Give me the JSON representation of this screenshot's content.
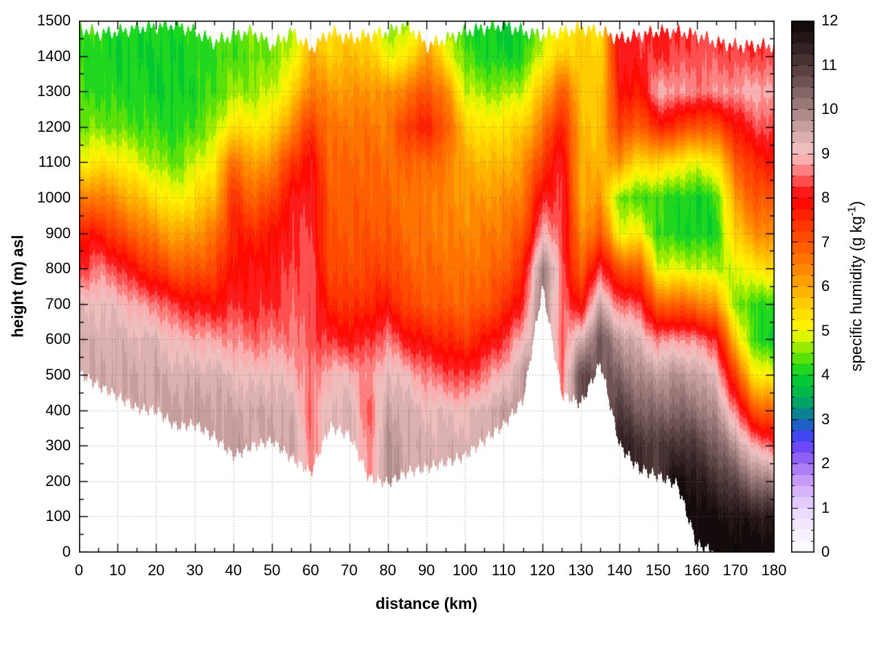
{
  "figure": {
    "background": "#ffffff",
    "frame_color": "#000000",
    "grid_color": "#787878"
  },
  "chart_data": {
    "type": "heatmap",
    "subtype": "filled_contour_cross_section",
    "title": "",
    "xlabel": "distance (km)",
    "ylabel": "height (m) asl",
    "colorbar_label_prefix": "specific humidity (g kg",
    "colorbar_label_sup": "-1",
    "colorbar_label_suffix": ")",
    "x_range_km": [
      0,
      180
    ],
    "y_range_m": [
      0,
      1500
    ],
    "colorbar_range": [
      0,
      12
    ],
    "x_ticks": [
      0,
      10,
      20,
      30,
      40,
      50,
      60,
      70,
      80,
      90,
      100,
      110,
      120,
      130,
      140,
      150,
      160,
      170,
      180
    ],
    "x_minor_step_km": 5,
    "y_ticks": [
      0,
      100,
      200,
      300,
      400,
      500,
      600,
      700,
      800,
      900,
      1000,
      1100,
      1200,
      1300,
      1400,
      1500
    ],
    "y_minor_step_m": 50,
    "colorbar_ticks": [
      0,
      1,
      2,
      3,
      4,
      5,
      6,
      7,
      8,
      9,
      10,
      11,
      12
    ],
    "colorbar_minor_step": 0.25,
    "band_interval": 0.25,
    "grid_x_step_km": 10,
    "grid_y_step_m": 100,
    "legend_position": "right-colorbar",
    "palette": [
      [
        0.0,
        255,
        255,
        255
      ],
      [
        0.5,
        246,
        238,
        255
      ],
      [
        1.0,
        232,
        213,
        252
      ],
      [
        1.5,
        210,
        170,
        248
      ],
      [
        2.0,
        160,
        110,
        245
      ],
      [
        2.5,
        90,
        60,
        250
      ],
      [
        2.75,
        40,
        80,
        230
      ],
      [
        3.0,
        20,
        110,
        170
      ],
      [
        3.25,
        0,
        150,
        120
      ],
      [
        3.5,
        0,
        175,
        85
      ],
      [
        4.0,
        0,
        210,
        40
      ],
      [
        4.5,
        120,
        230,
        0
      ],
      [
        5.0,
        255,
        250,
        0
      ],
      [
        5.5,
        255,
        215,
        0
      ],
      [
        6.0,
        255,
        170,
        0
      ],
      [
        6.5,
        255,
        125,
        0
      ],
      [
        7.0,
        255,
        85,
        0
      ],
      [
        7.5,
        255,
        45,
        0
      ],
      [
        8.0,
        255,
        0,
        0
      ],
      [
        8.5,
        255,
        105,
        105
      ],
      [
        9.0,
        247,
        198,
        198
      ],
      [
        9.5,
        210,
        168,
        168
      ],
      [
        10.0,
        165,
        130,
        130
      ],
      [
        10.5,
        120,
        92,
        92
      ],
      [
        11.0,
        80,
        58,
        58
      ],
      [
        11.5,
        45,
        28,
        28
      ],
      [
        12.0,
        12,
        6,
        6
      ]
    ],
    "x_start_km": 0,
    "x_step_km": 5,
    "z_start_m": 0,
    "z_step_m": 100,
    "terrain_m": [
      505,
      470,
      440,
      405,
      400,
      355,
      360,
      325,
      272,
      300,
      315,
      265,
      225,
      355,
      330,
      210,
      195,
      227,
      237,
      253,
      272,
      317,
      360,
      430,
      750,
      445,
      420,
      535,
      300,
      235,
      215,
      190,
      20,
      0,
      0,
      0,
      0
    ],
    "data_top_m": [
      1480,
      1465,
      1470,
      1480,
      1485,
      1490,
      1470,
      1440,
      1460,
      1470,
      1430,
      1470,
      1420,
      1470,
      1450,
      1460,
      1470,
      1490,
      1430,
      1450,
      1470,
      1480,
      1490,
      1470,
      1460,
      1470,
      1480,
      1470,
      1450,
      1460,
      1470,
      1470,
      1460,
      1440,
      1430,
      1430,
      1430
    ],
    "humidity_g_per_kg": [
      [
        null,
        null,
        null,
        null,
        null,
        null,
        9.4,
        9.2,
        8.2,
        7.6,
        6.4,
        5.1,
        4.4,
        4.2,
        4.2,
        4.3
      ],
      [
        null,
        null,
        null,
        null,
        null,
        9.5,
        9.4,
        9.2,
        8.6,
        7.8,
        6.6,
        5.3,
        4.5,
        4.2,
        4.1,
        4.2
      ],
      [
        null,
        null,
        null,
        null,
        null,
        9.5,
        9.4,
        9.1,
        8.3,
        7.2,
        6.2,
        5.2,
        4.4,
        4.1,
        4.0,
        4.1
      ],
      [
        null,
        null,
        null,
        null,
        null,
        9.5,
        9.3,
        8.8,
        7.8,
        6.8,
        5.8,
        4.9,
        4.3,
        4.1,
        4.0,
        4.1
      ],
      [
        null,
        null,
        null,
        null,
        null,
        9.5,
        9.3,
        8.6,
        7.4,
        6.4,
        5.4,
        4.6,
        4.2,
        4.0,
        4.0,
        4.1
      ],
      [
        null,
        null,
        null,
        null,
        9.6,
        9.4,
        9.0,
        8.2,
        7.0,
        6.0,
        5.0,
        4.4,
        4.1,
        4.0,
        4.0,
        4.1
      ],
      [
        null,
        null,
        null,
        null,
        9.6,
        9.4,
        8.9,
        8.0,
        7.0,
        6.2,
        5.4,
        4.8,
        4.3,
        4.1,
        4.1,
        4.2
      ],
      [
        null,
        null,
        null,
        null,
        9.6,
        9.4,
        8.8,
        7.9,
        7.2,
        6.6,
        5.8,
        5.2,
        4.6,
        4.3,
        4.2,
        4.3
      ],
      [
        null,
        null,
        null,
        9.7,
        9.5,
        9.2,
        8.7,
        8.2,
        7.9,
        7.7,
        7.5,
        6.8,
        5.4,
        4.6,
        4.3,
        4.4
      ],
      [
        null,
        null,
        null,
        null,
        9.5,
        9.1,
        8.5,
        8.1,
        8.0,
        7.6,
        6.8,
        6.0,
        5.2,
        4.6,
        4.4,
        4.5
      ],
      [
        null,
        null,
        null,
        null,
        9.5,
        9.2,
        8.6,
        8.2,
        8.0,
        7.8,
        7.2,
        6.4,
        5.4,
        4.8,
        4.5,
        4.6
      ],
      [
        null,
        null,
        null,
        9.6,
        9.4,
        9.0,
        8.6,
        8.4,
        8.3,
        8.2,
        8.0,
        7.4,
        6.4,
        5.4,
        4.8,
        4.6
      ],
      [
        null,
        null,
        null,
        8.6,
        8.5,
        8.5,
        8.4,
        8.4,
        8.4,
        8.3,
        8.2,
        8.0,
        7.4,
        6.6,
        6.0,
        5.6
      ],
      [
        null,
        null,
        null,
        null,
        9.3,
        9.0,
        8.2,
        7.6,
        7.2,
        7.0,
        6.9,
        6.8,
        6.6,
        6.2,
        5.6,
        5.2
      ],
      [
        null,
        null,
        null,
        null,
        9.4,
        9.0,
        8.0,
        7.4,
        7.1,
        7.0,
        6.9,
        6.8,
        6.6,
        6.2,
        5.8,
        5.4
      ],
      [
        null,
        null,
        null,
        8.6,
        8.4,
        8.6,
        8.2,
        7.6,
        7.2,
        7.0,
        6.9,
        6.8,
        6.6,
        6.3,
        5.7,
        5.3
      ],
      [
        null,
        null,
        9.9,
        9.8,
        9.6,
        9.3,
        8.6,
        7.8,
        7.3,
        7.0,
        6.8,
        6.7,
        6.5,
        6.2,
        5.0,
        4.4
      ],
      [
        null,
        null,
        null,
        9.5,
        9.4,
        9.0,
        8.0,
        7.2,
        6.9,
        6.7,
        6.6,
        6.8,
        7.4,
        6.6,
        5.2,
        4.6
      ],
      [
        null,
        null,
        null,
        9.4,
        9.2,
        8.6,
        7.8,
        7.0,
        6.8,
        6.6,
        6.6,
        6.8,
        7.7,
        7.1,
        6.3,
        5.4
      ],
      [
        null,
        null,
        null,
        9.4,
        9.2,
        8.4,
        7.6,
        6.9,
        6.7,
        6.5,
        6.4,
        6.6,
        7.0,
        6.4,
        5.2,
        4.6
      ],
      [
        null,
        null,
        null,
        9.4,
        9.1,
        8.2,
        7.4,
        6.8,
        6.6,
        6.4,
        6.2,
        6.0,
        5.6,
        4.8,
        4.3,
        4.1
      ],
      [
        null,
        null,
        null,
        null,
        9.4,
        8.6,
        7.8,
        7.0,
        6.7,
        6.5,
        6.2,
        5.8,
        5.2,
        4.6,
        4.1,
        4.0
      ],
      [
        null,
        null,
        null,
        null,
        9.6,
        9.0,
        8.2,
        7.4,
        6.9,
        6.6,
        6.3,
        5.8,
        5.4,
        4.6,
        4.0,
        3.9
      ],
      [
        null,
        null,
        null,
        null,
        null,
        9.7,
        9.0,
        8.2,
        7.6,
        7.0,
        6.6,
        6.2,
        5.6,
        4.8,
        4.1,
        3.9
      ],
      [
        null,
        null,
        null,
        null,
        null,
        null,
        null,
        null,
        10.2,
        8.9,
        8.1,
        7.4,
        6.6,
        5.8,
        5.0,
        4.6
      ],
      [
        null,
        null,
        null,
        null,
        null,
        8.5,
        8.5,
        8.5,
        8.5,
        8.4,
        8.3,
        8.2,
        7.8,
        7.0,
        5.6,
        5.0
      ],
      [
        null,
        null,
        null,
        null,
        null,
        10.8,
        9.4,
        7.8,
        6.8,
        6.3,
        6.0,
        5.9,
        5.8,
        5.7,
        5.6,
        5.4
      ],
      [
        null,
        null,
        null,
        null,
        null,
        null,
        10.6,
        9.6,
        8.4,
        7.0,
        6.2,
        5.9,
        5.7,
        5.6,
        5.5,
        5.3
      ],
      [
        null,
        null,
        null,
        11.6,
        11.0,
        10.4,
        9.7,
        8.4,
        7.0,
        5.0,
        4.4,
        6.2,
        7.4,
        7.9,
        8.1,
        8.1
      ],
      [
        null,
        null,
        null,
        11.2,
        10.5,
        9.9,
        9.3,
        8.4,
        7.0,
        5.2,
        4.3,
        5.4,
        6.8,
        7.7,
        8.2,
        8.3
      ],
      [
        null,
        null,
        null,
        11.0,
        10.3,
        9.7,
        8.6,
        6.8,
        4.9,
        4.2,
        4.2,
        5.6,
        7.7,
        8.9,
        8.2,
        8.0
      ],
      [
        null,
        null,
        11.9,
        11.2,
        10.4,
        9.8,
        8.8,
        6.9,
        4.9,
        4.1,
        4.1,
        5.2,
        7.4,
        8.8,
        8.3,
        8.1
      ],
      [
        null,
        12.0,
        11.6,
        11.0,
        10.2,
        9.6,
        8.6,
        6.6,
        4.8,
        4.0,
        4.0,
        5.0,
        7.0,
        8.6,
        8.4,
        8.2
      ],
      [
        12.0,
        11.8,
        11.2,
        10.5,
        9.8,
        9.2,
        8.2,
        6.2,
        4.7,
        4.1,
        4.2,
        5.3,
        7.1,
        8.7,
        8.4,
        8.2
      ],
      [
        12.0,
        11.7,
        10.8,
        9.8,
        8.6,
        7.2,
        5.6,
        4.5,
        4.8,
        5.6,
        6.2,
        6.9,
        7.8,
        8.8,
        8.3,
        8.1
      ],
      [
        12.0,
        11.6,
        10.2,
        8.8,
        7.0,
        5.2,
        4.1,
        4.2,
        5.3,
        6.3,
        7.0,
        7.6,
        8.3,
        8.9,
        8.3,
        8.0
      ],
      [
        12.0,
        11.5,
        10.0,
        8.5,
        6.8,
        5.0,
        4.0,
        4.2,
        5.4,
        6.4,
        7.0,
        7.7,
        8.4,
        8.9,
        8.3,
        8.0
      ]
    ]
  }
}
